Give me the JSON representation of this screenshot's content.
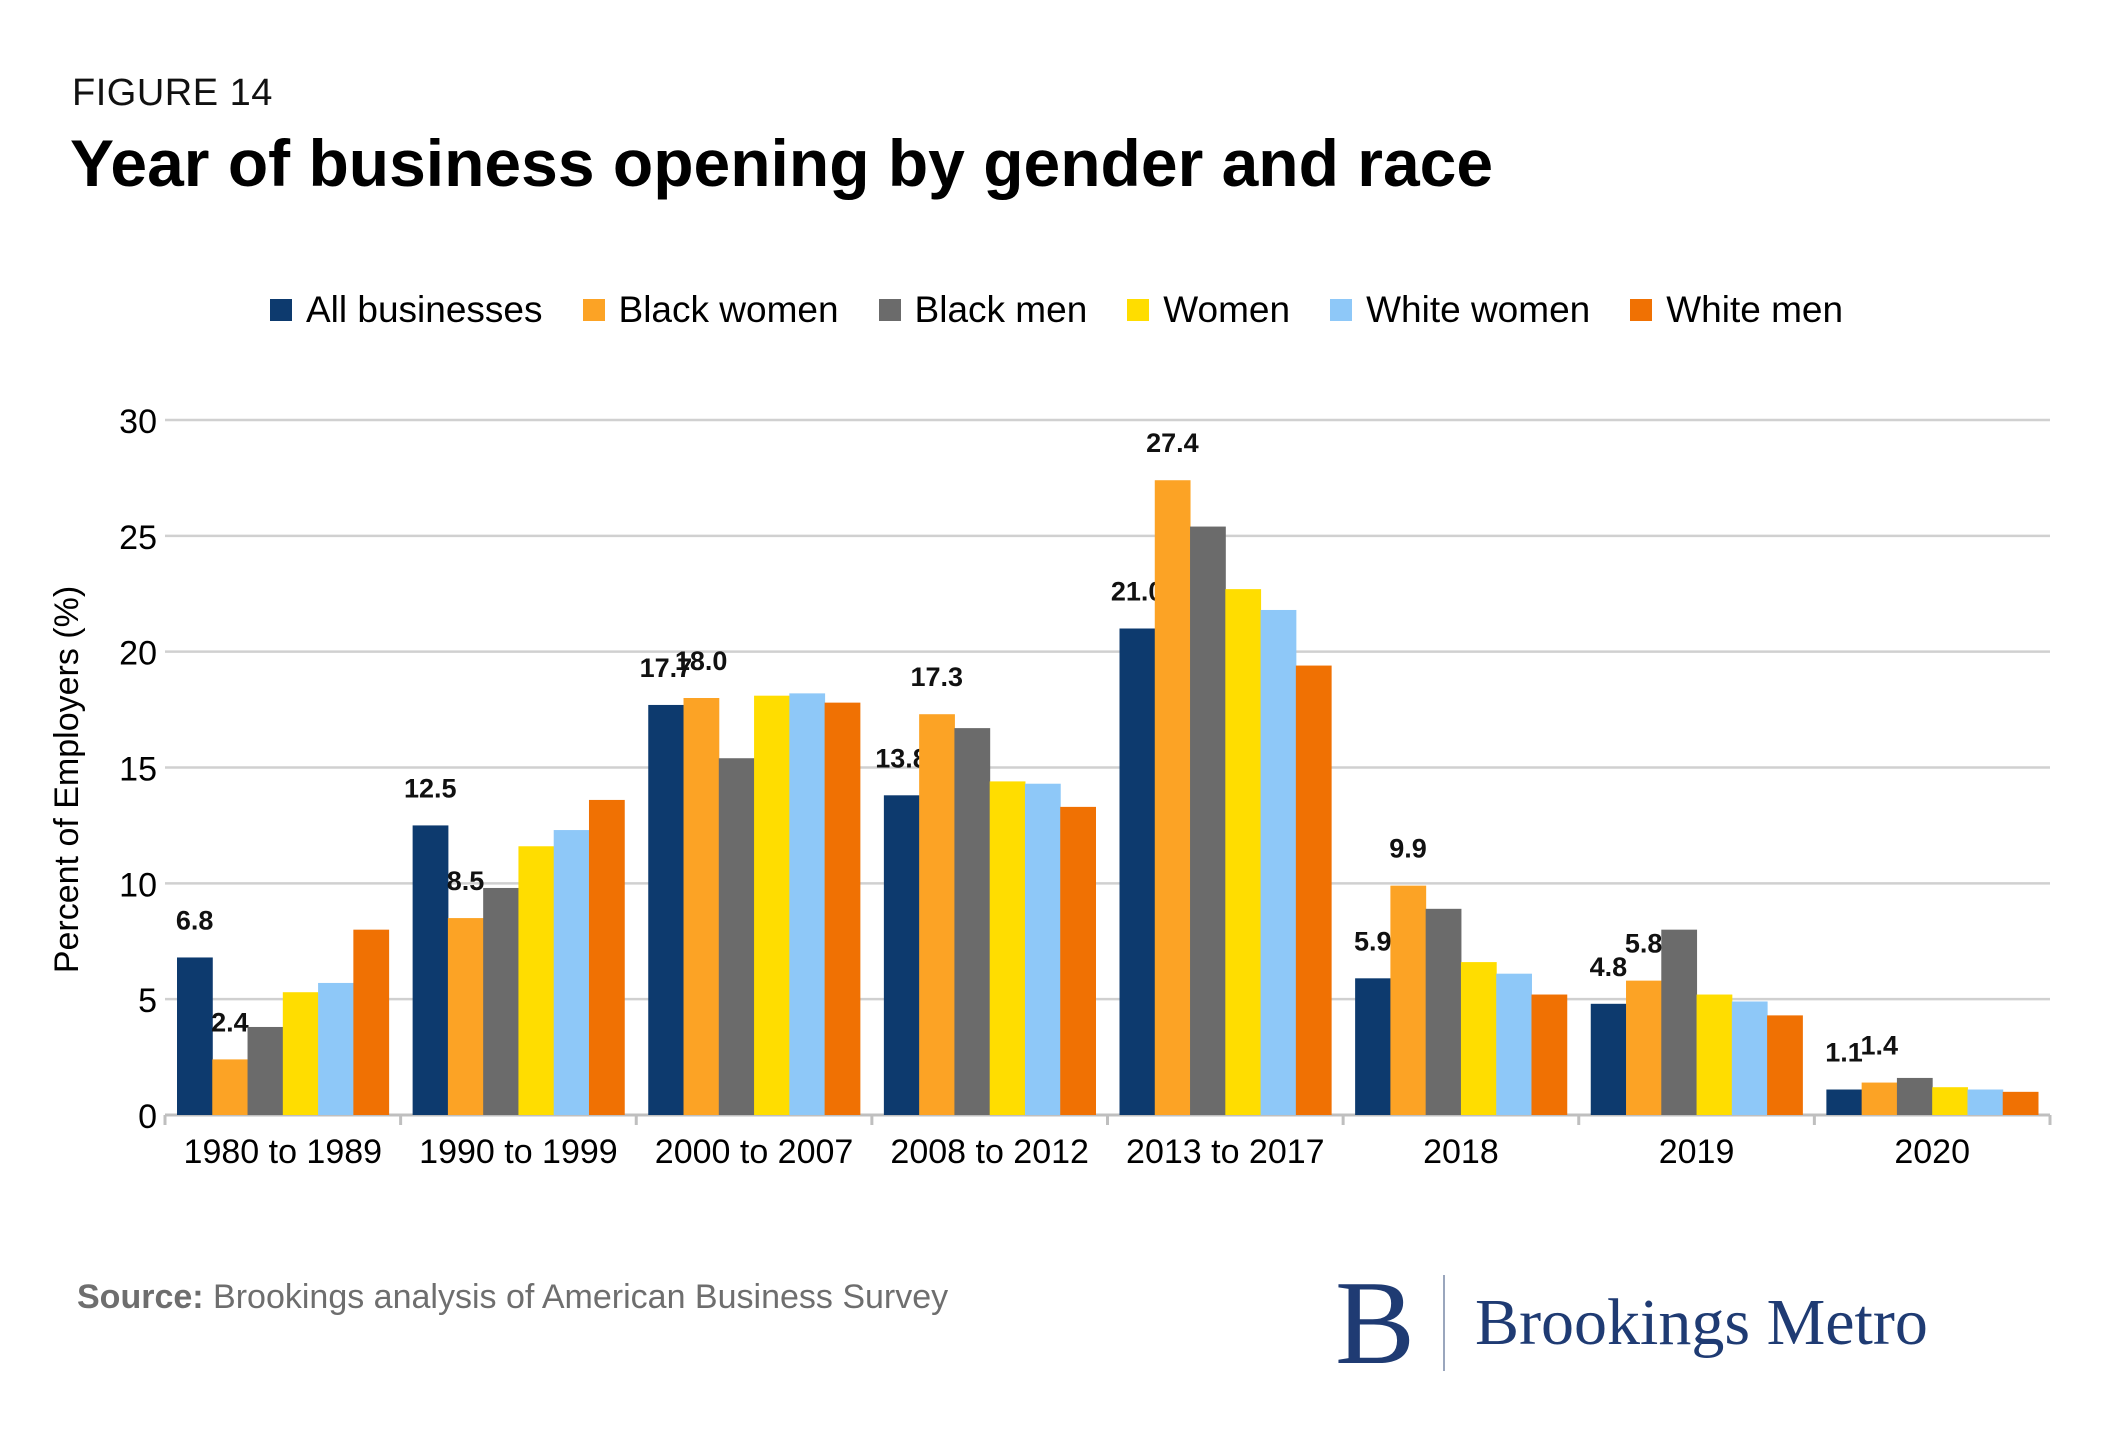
{
  "header": {
    "figure_label": "FIGURE 14",
    "title": "Year of business opening by gender and race"
  },
  "chart_data": {
    "type": "bar",
    "title": "Year of business opening by gender and race",
    "xlabel": "",
    "ylabel": "Percent of Employers (%)",
    "ylim": [
      0,
      30
    ],
    "yticks": [
      0,
      5,
      10,
      15,
      20,
      25,
      30
    ],
    "grid": true,
    "legend_position": "top",
    "categories": [
      "1980 to 1989",
      "1990 to 1999",
      "2000 to 2007",
      "2008 to 2012",
      "2013 to 2017",
      "2018",
      "2019",
      "2020"
    ],
    "series": [
      {
        "name": "All businesses",
        "color": "#0d3a6e",
        "values": [
          6.8,
          12.5,
          17.7,
          13.8,
          21.0,
          5.9,
          4.8,
          1.1
        ],
        "labeled": true
      },
      {
        "name": "Black women",
        "color": "#fca325",
        "values": [
          2.4,
          8.5,
          18.0,
          17.3,
          27.4,
          9.9,
          5.8,
          1.4
        ],
        "labeled": true
      },
      {
        "name": "Black men",
        "color": "#6b6b6b",
        "values": [
          3.8,
          9.8,
          15.4,
          16.7,
          25.4,
          8.9,
          8.0,
          1.6
        ],
        "labeled": false
      },
      {
        "name": "Women",
        "color": "#ffdd00",
        "values": [
          5.3,
          11.6,
          18.1,
          14.4,
          22.7,
          6.6,
          5.2,
          1.2
        ],
        "labeled": false
      },
      {
        "name": "White women",
        "color": "#8ec8f8",
        "values": [
          5.7,
          12.3,
          18.2,
          14.3,
          21.8,
          6.1,
          4.9,
          1.1
        ],
        "labeled": false
      },
      {
        "name": "White men",
        "color": "#f07103",
        "values": [
          8.0,
          13.6,
          17.8,
          13.3,
          19.4,
          5.2,
          4.3,
          1.0
        ],
        "labeled": false
      }
    ]
  },
  "footer": {
    "source_label": "Source:",
    "source_text": " Brookings analysis of American Business Survey"
  },
  "logo": {
    "mark": "B",
    "text": "Brookings Metro"
  }
}
